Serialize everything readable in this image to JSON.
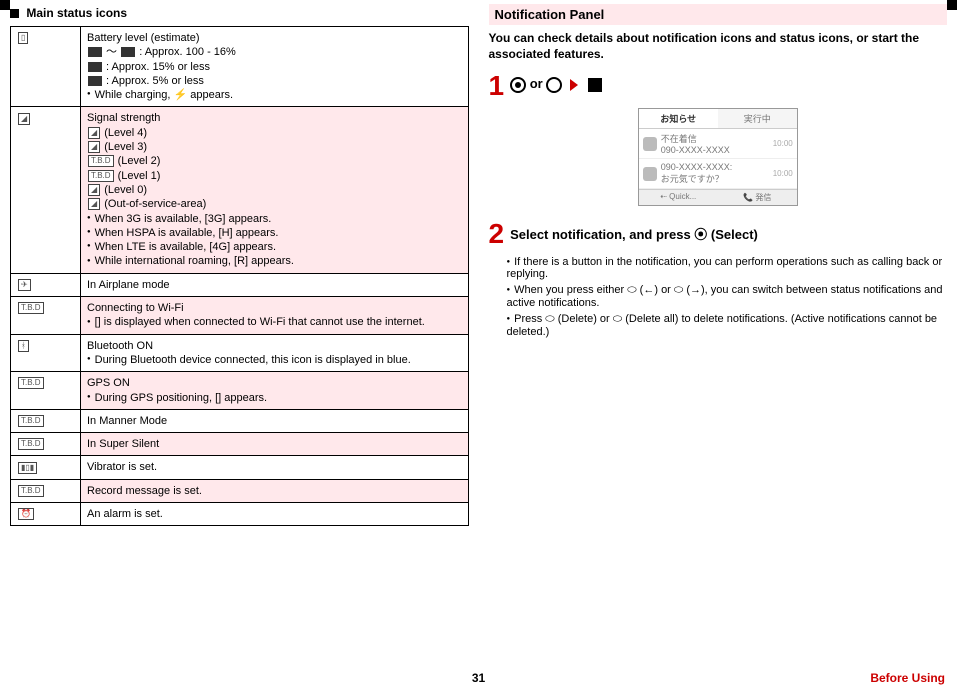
{
  "left": {
    "title": "Main status icons",
    "rows": [
      {
        "desc_lines": [
          "Battery level (estimate)",
          "[] ~ [] : Approx. 100 - 16%",
          "[] : Approx. 15% or less",
          "[] : Approx. 5% or less"
        ],
        "bullets": [
          "While charging,  ⚡  appears."
        ]
      },
      {
        "desc_lines": [
          "Signal strength",
          "  (Level 4)",
          "  (Level 3)",
          "  (Level 2)",
          "  (Level 1)",
          "  (Level 0)",
          "  (Out-of-service-area)"
        ],
        "bullets": [
          "When 3G is available, [3G] appears.",
          "When HSPA is available, [H] appears.",
          "When LTE is available, [4G] appears.",
          "While international roaming, [R] appears."
        ]
      },
      {
        "desc_lines": [
          "In Airplane mode"
        ],
        "bullets": []
      },
      {
        "desc_lines": [
          "Connecting to Wi-Fi"
        ],
        "bullets": [
          "[] is displayed when connected to Wi-Fi that cannot use the internet."
        ]
      },
      {
        "desc_lines": [
          "Bluetooth ON"
        ],
        "bullets": [
          "During Bluetooth device connected, this icon is displayed in blue."
        ]
      },
      {
        "desc_lines": [
          "GPS ON"
        ],
        "bullets": [
          "During GPS positioning, [] appears."
        ]
      },
      {
        "desc_lines": [
          "In Manner Mode"
        ],
        "bullets": []
      },
      {
        "desc_lines": [
          "In Super Silent"
        ],
        "bullets": []
      },
      {
        "desc_lines": [
          "Vibrator is set."
        ],
        "bullets": []
      },
      {
        "desc_lines": [
          "Record message is set."
        ],
        "bullets": []
      },
      {
        "desc_lines": [
          "An alarm is set."
        ],
        "bullets": []
      }
    ]
  },
  "right": {
    "panel_title": "Notification Panel",
    "intro": "You can check details about notification icons and status icons, or start the associated features.",
    "step1_or": "or",
    "phone": {
      "tab1": "お知らせ",
      "tab2": "実行中",
      "row1_t": "不在着信",
      "row1_s": "090-XXXX-XXXX",
      "row1_tm": "10:00",
      "row2_t": "090-XXXX-XXXX:",
      "row2_s": "お元気ですか？",
      "row2_tm": "10:00",
      "foot1": "⇠ Quick...",
      "foot2": "📞 発信"
    },
    "step2_title": "Select notification, and press ⦿ (Select)",
    "step2_bullets": [
      "If there is a button in the notification, you can perform operations such as calling back or replying.",
      "When you press either ⬭ (←) or ⬭ (→), you can switch between status notifications and active notifications.",
      "Press ⬭ (Delete) or ⬭ (Delete all) to delete notifications. (Active notifications cannot be deleted.)"
    ]
  },
  "footer": {
    "page": "31",
    "section": "Before Using"
  }
}
